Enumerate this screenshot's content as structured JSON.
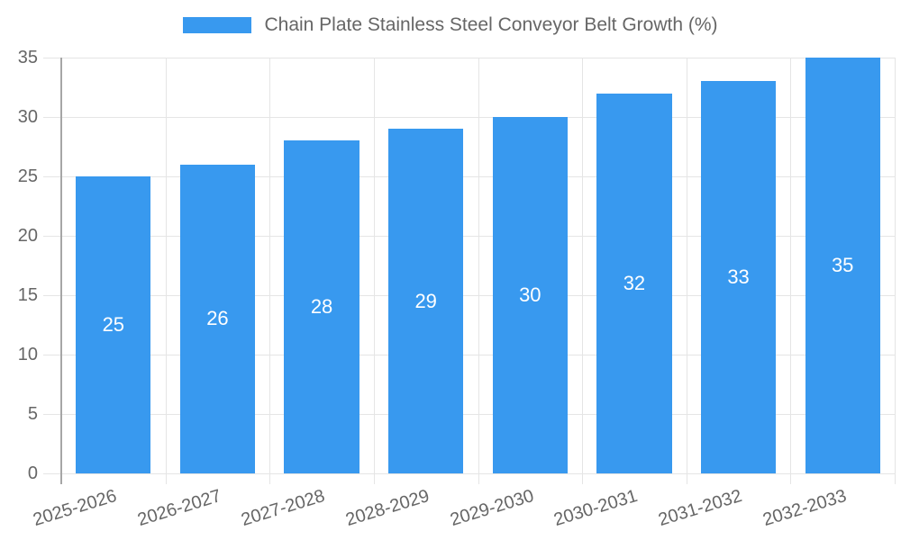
{
  "chart_data": {
    "type": "bar",
    "title": "Chain Plate Stainless Steel Conveyor Belt Growth (%)",
    "categories": [
      "2025-2026",
      "2026-2027",
      "2027-2028",
      "2028-2029",
      "2029-2030",
      "2030-2031",
      "2031-2032",
      "2032-2033"
    ],
    "values": [
      25,
      26,
      28,
      29,
      30,
      32,
      33,
      35
    ],
    "value_labels": [
      "25",
      "26",
      "28",
      "29",
      "30",
      "32",
      "33",
      "35"
    ],
    "xlabel": "",
    "ylabel": "",
    "ylim": [
      0,
      35
    ],
    "y_tick_labels": [
      "0",
      "5",
      "10",
      "15",
      "20",
      "25",
      "30",
      "35"
    ],
    "grid": true,
    "legend_position": "top-center",
    "colors": {
      "bar": "#3899ef",
      "grid_line": "#e5e5e5",
      "axis_line": "#a6a6a6",
      "tick_text": "#666666",
      "value_text": "#ffffff"
    }
  }
}
